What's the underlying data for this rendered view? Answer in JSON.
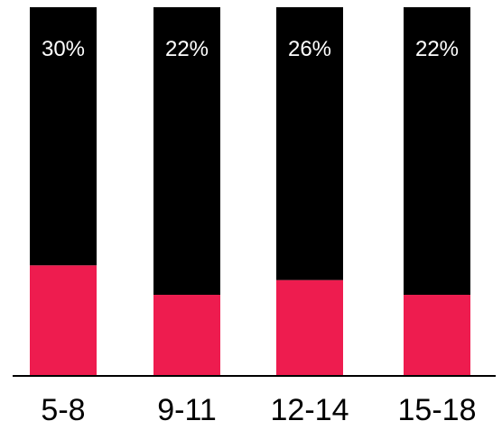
{
  "chart_data": {
    "type": "bar",
    "stacked": true,
    "categories": [
      "5-8",
      "9-11",
      "12-14",
      "15-18"
    ],
    "series": [
      {
        "values": [
          30,
          22,
          26,
          22
        ],
        "color": "#ee1c4f"
      },
      {
        "values": [
          70,
          78,
          74,
          78
        ],
        "color": "#000000"
      }
    ],
    "data_labels": [
      "30%",
      "22%",
      "26%",
      "22%"
    ],
    "ylim": [
      0,
      100
    ],
    "grid": false,
    "legend": "none"
  }
}
